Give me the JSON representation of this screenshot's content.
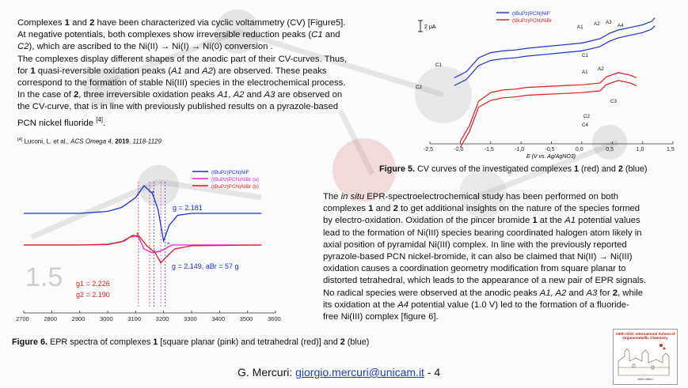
{
  "intro": [
    {
      "t": "Complexes "
    },
    {
      "t": "1",
      "b": true
    },
    {
      "t": " and "
    },
    {
      "t": "2",
      "b": true
    },
    {
      "t": " have been characterized via cyclic voltammetry (CV) [Figure5]."
    },
    {
      "br": true
    },
    {
      "t": "At negative potentials, both complexes show irreversible reduction peaks ("
    },
    {
      "t": "C1",
      "i": true
    },
    {
      "t": " and "
    },
    {
      "br": true
    },
    {
      "t": "C2",
      "i": true
    },
    {
      "t": "), which are ascribed to the  Ni(II) → Ni(I) → Ni(0) conversion ."
    },
    {
      "br": true
    },
    {
      "t": "The complexes display different shapes of the anodic part of their CV-curves. Thus,"
    },
    {
      "br": true
    },
    {
      "t": "for "
    },
    {
      "t": "1",
      "b": true
    },
    {
      "t": " quasi-reversible oxidation peaks ("
    },
    {
      "t": "A1",
      "i": true
    },
    {
      "t": " and "
    },
    {
      "t": "A2",
      "i": true
    },
    {
      "t": ") are observed. These peaks"
    },
    {
      "br": true
    },
    {
      "t": "correspond to the formation of stable Ni(III) species in the electrochemical process."
    },
    {
      "br": true
    },
    {
      "t": "In the case of "
    },
    {
      "t": "2",
      "b": true
    },
    {
      "t": ", three  irreversible oxidation peaks "
    },
    {
      "t": "A1",
      "i": true
    },
    {
      "t": ", "
    },
    {
      "t": "A2",
      "i": true
    },
    {
      "t": " and "
    },
    {
      "t": "A3",
      "i": true
    },
    {
      "t": " are observed on"
    },
    {
      "br": true
    },
    {
      "t": "the CV-curve, that is in line with previously published results on a pyrazole-based"
    },
    {
      "br": true
    },
    {
      "t": "PCN nickel fluoride "
    },
    {
      "t": "[4]",
      "sup": true
    },
    {
      "t": "."
    }
  ],
  "reference": [
    {
      "t": "[4]",
      "sup": true
    },
    {
      "t": " Luconi, L. et al., "
    },
    {
      "t": "ACS Omega 4",
      "i": true
    },
    {
      "t": ", "
    },
    {
      "t": "2019",
      "b": true
    },
    {
      "t": ", "
    },
    {
      "t": "1118-1129",
      "i": true
    }
  ],
  "epr_text": [
    {
      "t": "The "
    },
    {
      "t": "in situ",
      "i": true
    },
    {
      "t": " EPR-spectroelectrochemical study has been performed  on both"
    },
    {
      "br": true
    },
    {
      "t": "complexes "
    },
    {
      "t": "1",
      "b": true
    },
    {
      "t": " and "
    },
    {
      "t": "2",
      "b": true
    },
    {
      "t": " to get  additional insights on the nature of the species formed"
    },
    {
      "br": true
    },
    {
      "t": "by electro-oxidation. Oxidation of the pincer bromide "
    },
    {
      "t": "1",
      "b": true
    },
    {
      "t": " at the  "
    },
    {
      "t": "A1",
      "i": true
    },
    {
      "t": " potential values"
    },
    {
      "br": true
    },
    {
      "t": "lead to the  formation of Ni(III) species bearing coordinated halogen atom likely in"
    },
    {
      "br": true
    },
    {
      "t": "axial position of pyramidal Ni(III) complex. In line with the previously reported"
    },
    {
      "br": true
    },
    {
      "t": "pyrazole-based PCN nickel-bromide, it can also be claimed that Ni(II) → Ni(III)"
    },
    {
      "br": true
    },
    {
      "t": "oxidation causes a coordination geometry modification from square planar to"
    },
    {
      "br": true
    },
    {
      "t": "distorted tetrahedral, which leads to the appearance of a new pair of EPR signals."
    },
    {
      "br": true
    },
    {
      "t": "No radical species were observed at the  anodic peaks "
    },
    {
      "t": "A1, A2",
      "i": true
    },
    {
      "t": " and "
    },
    {
      "t": "A3",
      "i": true
    },
    {
      "t": " for "
    },
    {
      "t": "2",
      "b": true
    },
    {
      "t": ", while"
    },
    {
      "br": true
    },
    {
      "t": "its oxidation at the "
    },
    {
      "t": "A4",
      "i": true
    },
    {
      "t": " potential value (1.0 V) led to the  formation of a fluoride-"
    },
    {
      "br": true
    },
    {
      "t": "free Ni(III) complex [figure 6]."
    }
  ],
  "caption5": [
    {
      "t": "Figure 5.",
      "b": true
    },
    {
      "t": " CV curves of the  investigated complexes "
    },
    {
      "t": "1",
      "b": true
    },
    {
      "t": " (red)  and "
    },
    {
      "t": "2",
      "b": true
    },
    {
      "t": " (blue)"
    }
  ],
  "caption6": [
    {
      "t": "Figure 6.",
      "b": true
    },
    {
      "t": " EPR spectra of complexes "
    },
    {
      "t": "1",
      "b": true
    },
    {
      "t": " [square planar (pink) and tetrahedral (red)] and "
    },
    {
      "t": "2",
      "b": true
    },
    {
      "t": " (blue)"
    }
  ],
  "footer": {
    "name": "G. Mercuri: ",
    "email": "giorgio.mercuri@unicam.it",
    "page": " - 4"
  },
  "logo": {
    "title": "XIIIth ISOC International School of Organometallic Chemistry",
    "tagline": "Web edition"
  },
  "watermark_number": "1.5",
  "colors": {
    "complex1": "#e31b1b",
    "complex2": "#1a2fd6",
    "pink": "#e020d8"
  },
  "chart_data": [
    {
      "type": "line",
      "title": "",
      "xlabel": "E (V vs. Ag/AgNO3)",
      "ylabel": "",
      "xlim": [
        -2.5,
        1.5
      ],
      "x_ticks": [
        "-2,5",
        "-2,0",
        "-1,5",
        "-1,0",
        "-0,5",
        "0,0",
        "0,5",
        "1,0",
        "1,5"
      ],
      "scale_bar": "2 μA",
      "legend_position": "top-center",
      "series": [
        {
          "name": "(tBuPz)PCN)NiF",
          "color": "#1a2fd6",
          "x": [
            -2.1,
            -1.9,
            -1.7,
            -1.5,
            -1.3,
            -1.1,
            -0.9,
            -0.6,
            -0.3,
            0.0,
            0.3,
            0.45,
            0.6,
            0.8,
            1.0,
            1.15,
            1.2
          ],
          "y": [
            0.5,
            1.2,
            2.8,
            3.4,
            3.6,
            3.7,
            3.9,
            4.1,
            4.3,
            4.5,
            5.0,
            5.6,
            6.0,
            6.3,
            6.6,
            7.0,
            7.4
          ]
        },
        {
          "name": "(tBuPz)PCN)NiBr",
          "color": "#e31b1b",
          "x": [
            -2.0,
            -1.85,
            -1.7,
            -1.5,
            -1.3,
            -1.1,
            -0.9,
            -0.6,
            -0.3,
            0.0,
            0.3,
            0.4,
            0.6,
            0.8,
            0.9
          ],
          "y": [
            -6.8,
            -5.0,
            -2.2,
            -1.2,
            -0.9,
            -0.8,
            -0.6,
            -0.5,
            -0.4,
            -0.3,
            -0.1,
            0.6,
            1.1,
            0.8,
            0.5
          ]
        }
      ],
      "annotations": [
        "A1",
        "A2",
        "A3",
        "A4",
        "C1",
        "C2",
        "A1",
        "A2",
        "C1",
        "C2",
        "C3",
        "C4"
      ]
    },
    {
      "type": "line",
      "title": "",
      "xlabel": "",
      "ylabel": "",
      "xlim": [
        2700,
        3600
      ],
      "x_ticks": [
        2700,
        2800,
        2900,
        3000,
        3100,
        3200,
        3300,
        3400,
        3500,
        3600
      ],
      "legend_position": "top-right",
      "series": [
        {
          "name": "(tBuPz)PCN)NiF",
          "color": "#1a2fd6",
          "x": [
            2700,
            2900,
            3000,
            3050,
            3100,
            3130,
            3160,
            3180,
            3200,
            3220,
            3250,
            3300,
            3400,
            3550
          ],
          "y": [
            0,
            0,
            0.05,
            0.15,
            0.4,
            0.7,
            0.5,
            0.1,
            -0.7,
            -0.3,
            -0.05,
            0,
            0,
            0
          ]
        },
        {
          "name": "(tBuPz)PCN)NiBr (a)",
          "color": "#e020d8",
          "x": [
            2700,
            2900,
            3000,
            3060,
            3090,
            3110,
            3130,
            3160,
            3190,
            3230,
            3300,
            3550
          ],
          "y": [
            -0.8,
            -0.8,
            -0.78,
            -0.7,
            -0.55,
            -0.6,
            -0.9,
            -1.0,
            -0.95,
            -0.8,
            -0.8,
            -0.8
          ]
        },
        {
          "name": "(tBuPz)PCN)NiBr (b)",
          "color": "#e31b1b",
          "x": [
            2700,
            2900,
            3000,
            3050,
            3080,
            3110,
            3140,
            3170,
            3190,
            3210,
            3240,
            3300,
            3550
          ],
          "y": [
            -0.8,
            -0.8,
            -0.79,
            -0.72,
            -0.6,
            -0.56,
            -0.82,
            -1.0,
            -1.25,
            -1.1,
            -0.9,
            -0.82,
            -0.8
          ]
        }
      ],
      "annotations": [
        "g = 2.181",
        "g = 2.149, aBr = 57 g",
        "g1 = 2.226",
        "g2 = 2.190"
      ]
    }
  ]
}
